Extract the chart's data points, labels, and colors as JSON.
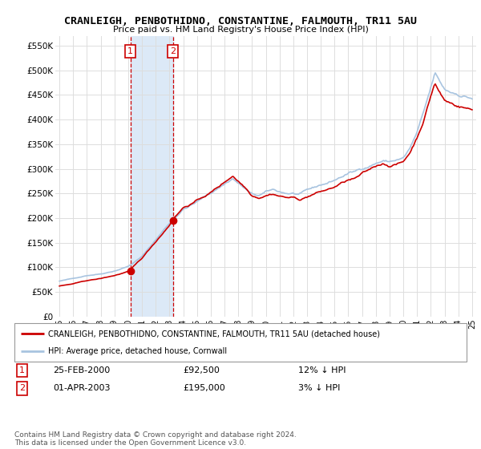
{
  "title": "CRANLEIGH, PENBOTHIDNO, CONSTANTINE, FALMOUTH, TR11 5AU",
  "subtitle": "Price paid vs. HM Land Registry's House Price Index (HPI)",
  "ylabel_ticks": [
    "£0",
    "£50K",
    "£100K",
    "£150K",
    "£200K",
    "£250K",
    "£300K",
    "£350K",
    "£400K",
    "£450K",
    "£500K",
    "£550K"
  ],
  "ytick_values": [
    0,
    50000,
    100000,
    150000,
    200000,
    250000,
    300000,
    350000,
    400000,
    450000,
    500000,
    550000
  ],
  "ylim": [
    0,
    570000
  ],
  "xmin_year": 1995,
  "xmax_year": 2025,
  "xtick_years": [
    1995,
    1996,
    1997,
    1998,
    1999,
    2000,
    2001,
    2002,
    2003,
    2004,
    2005,
    2006,
    2007,
    2008,
    2009,
    2010,
    2011,
    2012,
    2013,
    2014,
    2015,
    2016,
    2017,
    2018,
    2019,
    2020,
    2021,
    2022,
    2023,
    2024,
    2025
  ],
  "hpi_color": "#a8c4e0",
  "price_color": "#cc0000",
  "sale1_year": 2000.15,
  "sale1_price": 92500,
  "sale2_year": 2003.25,
  "sale2_price": 195000,
  "highlight_color": "#dce9f7",
  "vline_color": "#cc0000",
  "legend_line1": "CRANLEIGH, PENBOTHIDNO, CONSTANTINE, FALMOUTH, TR11 5AU (detached house)",
  "legend_line2": "HPI: Average price, detached house, Cornwall",
  "table_row1": [
    "1",
    "25-FEB-2000",
    "£92,500",
    "12% ↓ HPI"
  ],
  "table_row2": [
    "2",
    "01-APR-2003",
    "£195,000",
    "3% ↓ HPI"
  ],
  "footer": "Contains HM Land Registry data © Crown copyright and database right 2024.\nThis data is licensed under the Open Government Licence v3.0.",
  "background_color": "#ffffff",
  "grid_color": "#dddddd"
}
